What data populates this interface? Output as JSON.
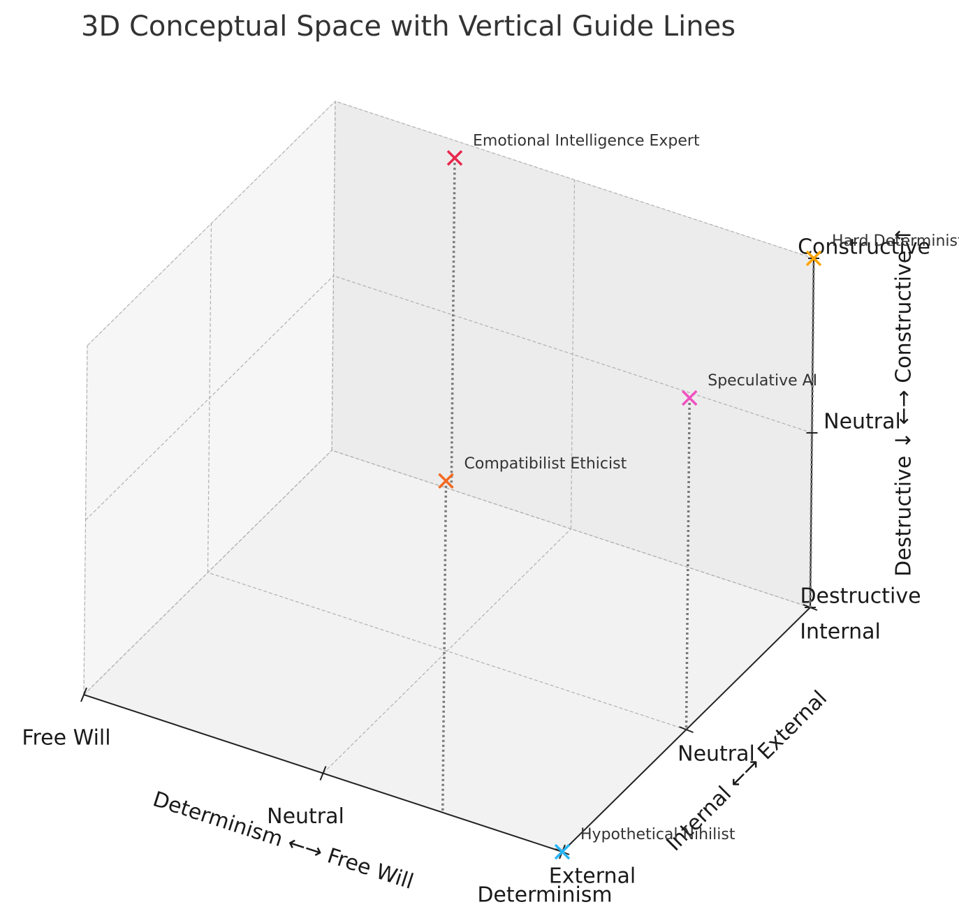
{
  "chart_data": {
    "type": "scatter3d",
    "title": "3D Conceptual Space with Vertical Guide Lines",
    "xlabel": "Determinism ←→ Free Will",
    "ylabel": "Internal ←→ External",
    "zlabel": "Destructive ↓ ←→ Constructive ↑",
    "xlim": [
      -1,
      1
    ],
    "ylim": [
      -1,
      1
    ],
    "zlim": [
      -1,
      1
    ],
    "xticks": [
      {
        "value": -1,
        "label": "Determinism"
      },
      {
        "value": 0,
        "label": "Neutral"
      },
      {
        "value": 1,
        "label": "Free Will"
      }
    ],
    "yticks": [
      {
        "value": -1,
        "label": "Internal"
      },
      {
        "value": 0,
        "label": "Neutral"
      },
      {
        "value": 1,
        "label": "External"
      }
    ],
    "zticks": [
      {
        "value": -1,
        "label": "Destructive"
      },
      {
        "value": 0,
        "label": "Neutral"
      },
      {
        "value": 1,
        "label": "Constructive"
      }
    ],
    "grid": true,
    "guide_lines": true,
    "series": [
      {
        "name": "Emotional Intelligence Expert",
        "color": "#e8274b",
        "x": [
          0.5
        ],
        "y": [
          -1
        ],
        "z": [
          0.9
        ]
      },
      {
        "name": "Hard Determinist",
        "color": "#ffa500",
        "x": [
          -1
        ],
        "y": [
          -1
        ],
        "z": [
          1
        ]
      },
      {
        "name": "Speculative AI",
        "color": "#f050c0",
        "x": [
          -1
        ],
        "y": [
          0
        ],
        "z": [
          0.9
        ]
      },
      {
        "name": "Compatibilist Ethicist",
        "color": "#f26a21",
        "x": [
          -0.5
        ],
        "y": [
          1
        ],
        "z": [
          0.9
        ]
      },
      {
        "name": "Hypothetical Nihilist",
        "color": "#29b6f6",
        "x": [
          -1
        ],
        "y": [
          1
        ],
        "z": [
          -1
        ]
      }
    ]
  }
}
